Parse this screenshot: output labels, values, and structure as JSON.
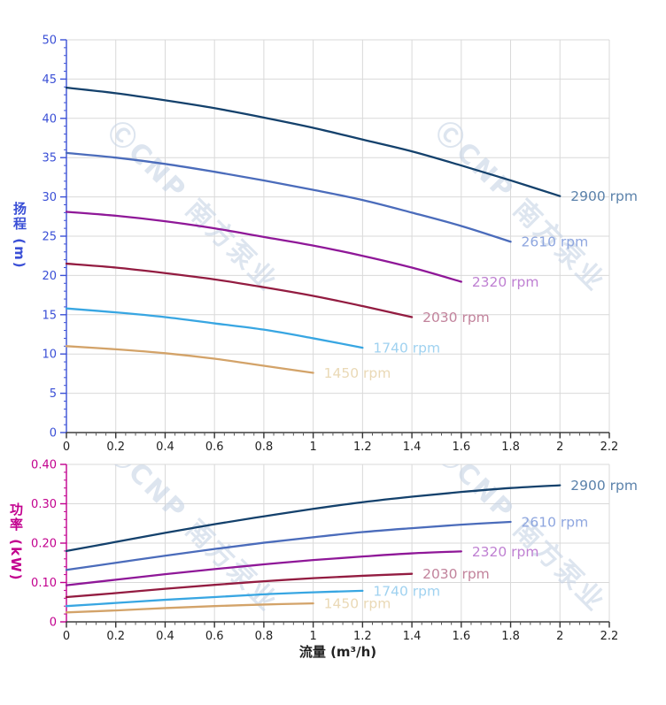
{
  "page": {
    "background": "#ffffff"
  },
  "watermark": {
    "text": "ⒸCNP 南方泵业",
    "color": "#c7d4e6"
  },
  "chart_data": [
    {
      "type": "line",
      "id": "head",
      "title": "",
      "xlabel": "",
      "ylabel": "扬程 (m)",
      "xlim": [
        0,
        2.2
      ],
      "ylim": [
        0,
        50
      ],
      "x_major": 0.2,
      "x_minor": 0.04,
      "y_major": 5,
      "y_minor": 1,
      "x_tick_labels": [
        "0",
        "0.2",
        "0.4",
        "0.6",
        "0.8",
        "1",
        "1.2",
        "1.4",
        "1.6",
        "1.8",
        "2",
        "2.2"
      ],
      "y_tick_labels": [
        "0",
        "5",
        "10",
        "15",
        "20",
        "25",
        "30",
        "35",
        "40",
        "45",
        "50"
      ],
      "axis_color": "#3a4fd6",
      "x_axis_color": "#3f3f3f",
      "x_text_color": "#222222",
      "grid": true,
      "grid_color": "#d9d9d9",
      "legend_position": "curve-end-labels",
      "series": [
        {
          "name": "2900 rpm",
          "color": "#14416c",
          "label_color": "#5b82ab",
          "x": [
            0,
            0.2,
            0.4,
            0.6,
            0.8,
            1.0,
            1.2,
            1.4,
            1.6,
            1.8,
            2.0
          ],
          "y": [
            43.9,
            43.2,
            42.3,
            41.3,
            40.1,
            38.8,
            37.3,
            35.8,
            34.0,
            32.1,
            30.1
          ]
        },
        {
          "name": "2610 rpm",
          "color": "#4b6cbb",
          "label_color": "#8ea6df",
          "x": [
            0,
            0.2,
            0.4,
            0.6,
            0.8,
            1.0,
            1.2,
            1.4,
            1.6,
            1.8
          ],
          "y": [
            35.6,
            35.0,
            34.2,
            33.2,
            32.1,
            30.9,
            29.6,
            28.0,
            26.3,
            24.3
          ]
        },
        {
          "name": "2320 rpm",
          "color": "#8f1898",
          "label_color": "#bf80d2",
          "x": [
            0,
            0.2,
            0.4,
            0.6,
            0.8,
            1.0,
            1.2,
            1.4,
            1.6
          ],
          "y": [
            28.1,
            27.6,
            26.9,
            26.0,
            24.9,
            23.8,
            22.5,
            21.0,
            19.2
          ]
        },
        {
          "name": "2030 rpm",
          "color": "#931c41",
          "label_color": "#c2839c",
          "x": [
            0,
            0.2,
            0.4,
            0.6,
            0.8,
            1.0,
            1.2,
            1.4
          ],
          "y": [
            21.5,
            21.0,
            20.3,
            19.5,
            18.5,
            17.4,
            16.1,
            14.7
          ]
        },
        {
          "name": "1740 rpm",
          "color": "#38a6e2",
          "label_color": "#a0d2f0",
          "x": [
            0,
            0.2,
            0.4,
            0.6,
            0.8,
            1.0,
            1.2
          ],
          "y": [
            15.8,
            15.3,
            14.7,
            13.9,
            13.1,
            12.0,
            10.8
          ]
        },
        {
          "name": "1450 rpm",
          "color": "#d3a369",
          "label_color": "#ead9b6",
          "x": [
            0,
            0.2,
            0.4,
            0.6,
            0.8,
            1.0
          ],
          "y": [
            11.0,
            10.6,
            10.1,
            9.4,
            8.5,
            7.6
          ]
        }
      ]
    },
    {
      "type": "line",
      "id": "power",
      "title": "",
      "xlabel": "流量 (m³/h)",
      "ylabel": "功率 (kW)",
      "xlim": [
        0,
        2.2
      ],
      "ylim": [
        0,
        0.4
      ],
      "x_major": 0.2,
      "x_minor": 0.04,
      "y_major": 0.1,
      "y_minor": 0.02,
      "x_tick_labels": [
        "0",
        "0.2",
        "0.4",
        "0.6",
        "0.8",
        "1",
        "1.2",
        "1.4",
        "1.6",
        "1.8",
        "2",
        "2.2"
      ],
      "y_tick_labels": [
        "0",
        "0.10",
        "0.20",
        "0.30",
        "0.40"
      ],
      "axis_color": "#c2008e",
      "x_axis_color": "#3f3f3f",
      "x_text_color": "#222222",
      "grid": true,
      "grid_color": "#d9d9d9",
      "legend_position": "curve-end-labels",
      "series": [
        {
          "name": "2900 rpm",
          "color": "#14416c",
          "label_color": "#5b82ab",
          "x": [
            0,
            0.2,
            0.4,
            0.6,
            0.8,
            1.0,
            1.2,
            1.4,
            1.6,
            1.8,
            2.0
          ],
          "y": [
            0.18,
            0.203,
            0.226,
            0.248,
            0.268,
            0.287,
            0.304,
            0.318,
            0.33,
            0.34,
            0.347
          ]
        },
        {
          "name": "2610 rpm",
          "color": "#4b6cbb",
          "label_color": "#8ea6df",
          "x": [
            0,
            0.2,
            0.4,
            0.6,
            0.8,
            1.0,
            1.2,
            1.4,
            1.6,
            1.8
          ],
          "y": [
            0.132,
            0.15,
            0.168,
            0.185,
            0.201,
            0.215,
            0.228,
            0.238,
            0.247,
            0.254
          ]
        },
        {
          "name": "2320 rpm",
          "color": "#8f1898",
          "label_color": "#bf80d2",
          "x": [
            0,
            0.2,
            0.4,
            0.6,
            0.8,
            1.0,
            1.2,
            1.4,
            1.6
          ],
          "y": [
            0.093,
            0.107,
            0.121,
            0.134,
            0.146,
            0.157,
            0.166,
            0.174,
            0.179
          ]
        },
        {
          "name": "2030 rpm",
          "color": "#931c41",
          "label_color": "#c2839c",
          "x": [
            0,
            0.2,
            0.4,
            0.6,
            0.8,
            1.0,
            1.2,
            1.4
          ],
          "y": [
            0.063,
            0.073,
            0.084,
            0.094,
            0.103,
            0.111,
            0.117,
            0.122
          ]
        },
        {
          "name": "1740 rpm",
          "color": "#38a6e2",
          "label_color": "#a0d2f0",
          "x": [
            0,
            0.2,
            0.4,
            0.6,
            0.8,
            1.0,
            1.2
          ],
          "y": [
            0.04,
            0.048,
            0.056,
            0.063,
            0.07,
            0.075,
            0.079
          ]
        },
        {
          "name": "1450 rpm",
          "color": "#d3a369",
          "label_color": "#ead9b6",
          "x": [
            0,
            0.2,
            0.4,
            0.6,
            0.8,
            1.0
          ],
          "y": [
            0.024,
            0.029,
            0.035,
            0.04,
            0.044,
            0.047
          ]
        }
      ]
    }
  ]
}
